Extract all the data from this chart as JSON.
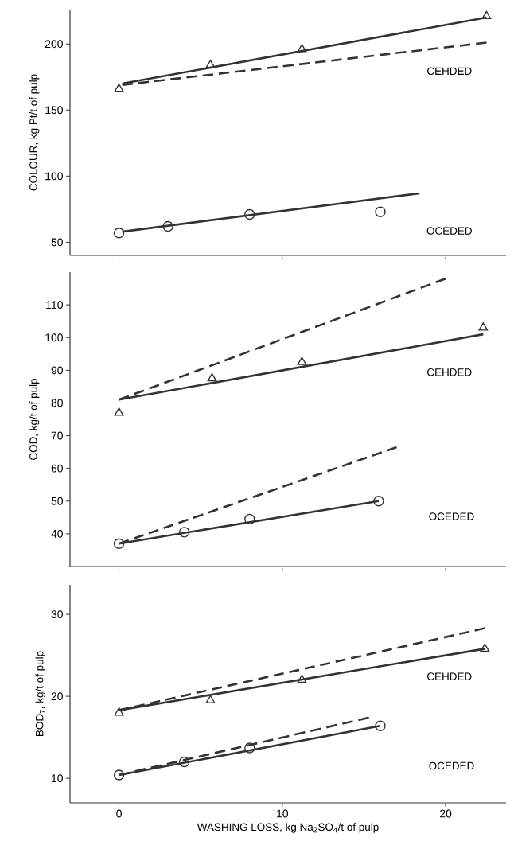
{
  "chart_data": [
    {
      "type": "line",
      "ylabel": "COLOUR, kg Pt/t of pulp",
      "xlim": [
        -3,
        23.7
      ],
      "ylim": [
        40,
        226
      ],
      "xticks": [
        0,
        10,
        20
      ],
      "yticks": [
        50,
        100,
        150,
        200
      ],
      "tick_labels": "y",
      "series": [
        {
          "type": "scatter",
          "marker": "triangle",
          "color": "#333333",
          "x": [
            0,
            5.6,
            11.2,
            22.5
          ],
          "values": [
            166,
            184,
            196,
            221
          ]
        },
        {
          "line_style": "solid",
          "color": "#333333",
          "x": [
            0.2,
            22.5
          ],
          "values": [
            170,
            220
          ]
        },
        {
          "line_style": "dashed",
          "color": "#333333",
          "x": [
            0.2,
            22.5
          ],
          "values": [
            169,
            201
          ]
        },
        {
          "type": "scatter",
          "marker": "circle",
          "color": "#333333",
          "x": [
            0,
            3,
            8,
            16
          ],
          "values": [
            57,
            62,
            71,
            73
          ]
        },
        {
          "line_style": "solid",
          "color": "#333333",
          "x": [
            0.2,
            18.4
          ],
          "values": [
            58,
            87
          ]
        }
      ],
      "annotations": [
        "CEHDED",
        "OCEDED"
      ]
    },
    {
      "type": "line",
      "ylabel": "COD, kg/t of pulp",
      "xlim": [
        -3,
        23.7
      ],
      "ylim": [
        30,
        120
      ],
      "xticks": [
        0,
        10,
        20
      ],
      "yticks": [
        40,
        50,
        60,
        70,
        80,
        90,
        100,
        110
      ],
      "tick_labels": "y",
      "series": [
        {
          "type": "scatter",
          "marker": "triangle",
          "color": "#333333",
          "x": [
            0,
            5.7,
            11.2,
            22.3
          ],
          "values": [
            77,
            87.5,
            92.5,
            103
          ]
        },
        {
          "line_style": "solid",
          "color": "#333333",
          "x": [
            0,
            22.3
          ],
          "values": [
            81,
            101
          ]
        },
        {
          "line_style": "dashed",
          "color": "#333333",
          "x": [
            0,
            20
          ],
          "values": [
            81,
            118
          ]
        },
        {
          "type": "scatter",
          "marker": "circle",
          "color": "#333333",
          "x": [
            0,
            4,
            8,
            15.9
          ],
          "values": [
            37,
            40.5,
            44.5,
            50
          ]
        },
        {
          "line_style": "solid",
          "color": "#333333",
          "x": [
            0,
            15.9
          ],
          "values": [
            37,
            50
          ]
        },
        {
          "line_style": "dashed",
          "color": "#333333",
          "x": [
            0,
            17
          ],
          "values": [
            37,
            66.5
          ]
        }
      ],
      "annotations": [
        "CEHDED",
        "OCEDED"
      ]
    },
    {
      "type": "line",
      "ylabel": "BOD$_{7}$, kg/t of pulp",
      "xlabel": "WASHING LOSS, kg Na$_{2}$SO$_{4}$/t of pulp",
      "xlim": [
        -3,
        23.7
      ],
      "ylim": [
        7,
        33.6
      ],
      "xticks": [
        0,
        10,
        20
      ],
      "yticks": [
        10,
        20,
        30
      ],
      "series": [
        {
          "type": "scatter",
          "marker": "triangle",
          "color": "#333333",
          "x": [
            0,
            5.6,
            11.2,
            22.4
          ],
          "values": [
            18,
            19.5,
            22,
            25.8
          ]
        },
        {
          "line_style": "solid",
          "color": "#333333",
          "x": [
            0,
            22.4
          ],
          "values": [
            18.3,
            25.8
          ]
        },
        {
          "line_style": "dashed",
          "color": "#333333",
          "x": [
            0,
            22.4
          ],
          "values": [
            18.3,
            28.3
          ]
        },
        {
          "type": "scatter",
          "marker": "circle",
          "color": "#333333",
          "x": [
            0,
            4,
            8,
            16
          ],
          "values": [
            10.4,
            12,
            13.7,
            16.4
          ]
        },
        {
          "line_style": "solid",
          "color": "#333333",
          "x": [
            0,
            16
          ],
          "values": [
            10.4,
            16.4
          ]
        },
        {
          "line_style": "dashed",
          "color": "#333333",
          "x": [
            0,
            15.3
          ],
          "values": [
            10.4,
            17.4
          ]
        }
      ],
      "annotations": [
        "CEHDED",
        "OCEDED"
      ]
    }
  ]
}
